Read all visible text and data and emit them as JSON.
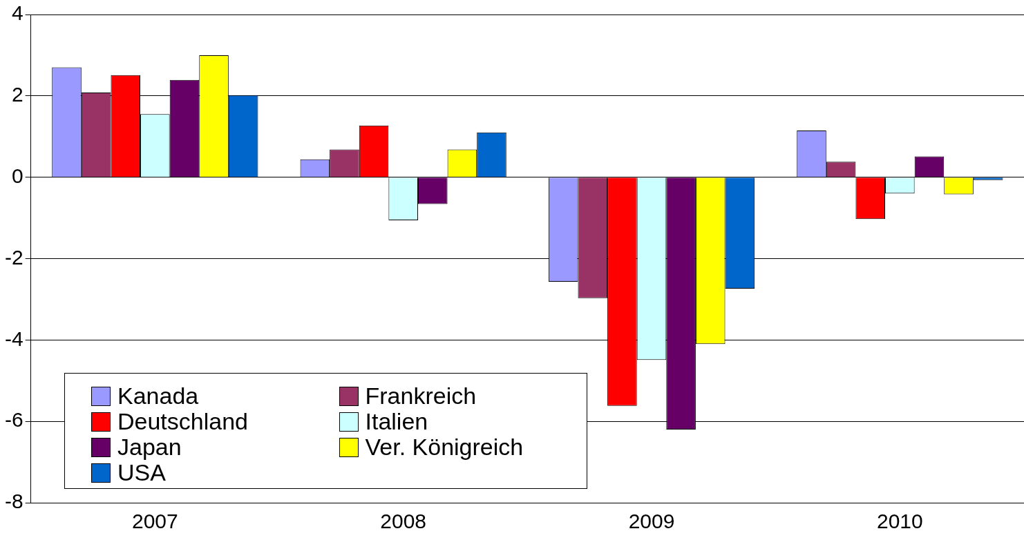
{
  "chart_data": {
    "type": "bar",
    "categories": [
      "2007",
      "2008",
      "2009",
      "2010"
    ],
    "series": [
      {
        "name": "Kanada",
        "color": "#9999ff",
        "values": [
          2.7,
          0.44,
          -2.57,
          1.15
        ]
      },
      {
        "name": "Frankreich",
        "color": "#993366",
        "values": [
          2.08,
          0.68,
          -2.97,
          0.38
        ]
      },
      {
        "name": "Deutschland",
        "color": "#ff0000",
        "values": [
          2.51,
          1.27,
          -5.62,
          -1.03
        ]
      },
      {
        "name": "Italien",
        "color": "#ccffff",
        "values": [
          1.55,
          -1.06,
          -4.49,
          -0.4
        ]
      },
      {
        "name": "Japan",
        "color": "#660066",
        "values": [
          2.39,
          -0.66,
          -6.2,
          0.51
        ]
      },
      {
        "name": "Ver. Königreich",
        "color": "#ffff00",
        "values": [
          3.0,
          0.68,
          -4.1,
          -0.42
        ]
      },
      {
        "name": "USA",
        "color": "#0066cc",
        "values": [
          2.02,
          1.1,
          -2.74,
          -0.07
        ]
      }
    ],
    "ylim": [
      -8,
      4
    ],
    "yticks": [
      -8,
      -6,
      -4,
      -2,
      0,
      2,
      4
    ],
    "grid": "y",
    "legend": "bottom left"
  }
}
